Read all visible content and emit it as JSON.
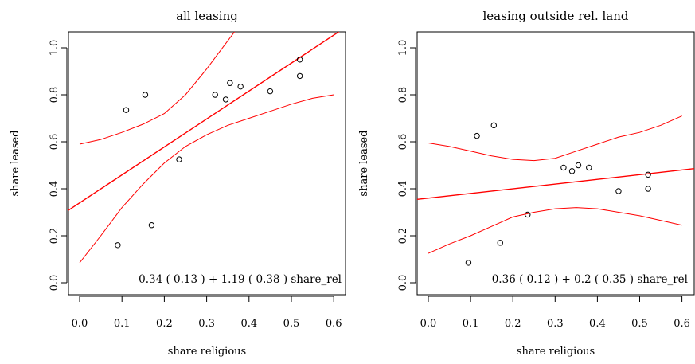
{
  "chart_data": [
    {
      "type": "scatter",
      "title": "all leasing",
      "xlabel": "share religious",
      "ylabel": "share leased",
      "xlim": [
        0.0,
        0.6
      ],
      "ylim": [
        0.0,
        1.0
      ],
      "xticks": [
        "0.0",
        "0.1",
        "0.2",
        "0.3",
        "0.4",
        "0.5",
        "0.6"
      ],
      "yticks": [
        "0.0",
        "0.2",
        "0.4",
        "0.6",
        "0.8",
        "1.0"
      ],
      "points": [
        {
          "x": 0.09,
          "y": 0.16
        },
        {
          "x": 0.11,
          "y": 0.735
        },
        {
          "x": 0.155,
          "y": 0.8
        },
        {
          "x": 0.17,
          "y": 0.245
        },
        {
          "x": 0.235,
          "y": 0.525
        },
        {
          "x": 0.32,
          "y": 0.8
        },
        {
          "x": 0.345,
          "y": 0.78
        },
        {
          "x": 0.355,
          "y": 0.85
        },
        {
          "x": 0.38,
          "y": 0.835
        },
        {
          "x": 0.45,
          "y": 0.815
        },
        {
          "x": 0.52,
          "y": 0.95
        },
        {
          "x": 0.52,
          "y": 0.88
        }
      ],
      "fit": {
        "intercept": 0.34,
        "slope": 1.19
      },
      "band_upper": [
        [
          0.0,
          0.59
        ],
        [
          0.05,
          0.61
        ],
        [
          0.1,
          0.64
        ],
        [
          0.15,
          0.675
        ],
        [
          0.2,
          0.72
        ],
        [
          0.25,
          0.8
        ],
        [
          0.3,
          0.91
        ],
        [
          0.35,
          1.03
        ],
        [
          0.4,
          1.15
        ]
      ],
      "band_lower": [
        [
          0.0,
          0.085
        ],
        [
          0.05,
          0.2
        ],
        [
          0.1,
          0.32
        ],
        [
          0.15,
          0.42
        ],
        [
          0.2,
          0.51
        ],
        [
          0.25,
          0.58
        ],
        [
          0.3,
          0.63
        ],
        [
          0.35,
          0.67
        ],
        [
          0.4,
          0.7
        ],
        [
          0.45,
          0.73
        ],
        [
          0.5,
          0.76
        ],
        [
          0.55,
          0.785
        ],
        [
          0.6,
          0.8
        ]
      ],
      "annotation": "0.34 ( 0.13 ) + 1.19 ( 0.38 ) share_rel",
      "color": "#ff0000"
    },
    {
      "type": "scatter",
      "title": "leasing outside rel. land",
      "xlabel": "share religious",
      "ylabel": "share leased",
      "xlim": [
        0.0,
        0.6
      ],
      "ylim": [
        0.0,
        1.0
      ],
      "xticks": [
        "0.0",
        "0.1",
        "0.2",
        "0.3",
        "0.4",
        "0.5",
        "0.6"
      ],
      "yticks": [
        "0.0",
        "0.2",
        "0.4",
        "0.6",
        "0.8",
        "1.0"
      ],
      "points": [
        {
          "x": 0.095,
          "y": 0.085
        },
        {
          "x": 0.115,
          "y": 0.625
        },
        {
          "x": 0.155,
          "y": 0.67
        },
        {
          "x": 0.17,
          "y": 0.17
        },
        {
          "x": 0.235,
          "y": 0.29
        },
        {
          "x": 0.32,
          "y": 0.49
        },
        {
          "x": 0.34,
          "y": 0.475
        },
        {
          "x": 0.355,
          "y": 0.5
        },
        {
          "x": 0.38,
          "y": 0.49
        },
        {
          "x": 0.45,
          "y": 0.39
        },
        {
          "x": 0.52,
          "y": 0.46
        },
        {
          "x": 0.52,
          "y": 0.4
        }
      ],
      "fit": {
        "intercept": 0.36,
        "slope": 0.2
      },
      "band_upper": [
        [
          0.0,
          0.595
        ],
        [
          0.05,
          0.58
        ],
        [
          0.1,
          0.56
        ],
        [
          0.15,
          0.54
        ],
        [
          0.2,
          0.525
        ],
        [
          0.25,
          0.52
        ],
        [
          0.3,
          0.53
        ],
        [
          0.35,
          0.56
        ],
        [
          0.4,
          0.59
        ],
        [
          0.45,
          0.62
        ],
        [
          0.5,
          0.64
        ],
        [
          0.55,
          0.67
        ],
        [
          0.6,
          0.71
        ]
      ],
      "band_lower": [
        [
          0.0,
          0.125
        ],
        [
          0.05,
          0.165
        ],
        [
          0.1,
          0.2
        ],
        [
          0.15,
          0.24
        ],
        [
          0.2,
          0.28
        ],
        [
          0.25,
          0.3
        ],
        [
          0.3,
          0.315
        ],
        [
          0.35,
          0.32
        ],
        [
          0.4,
          0.315
        ],
        [
          0.45,
          0.3
        ],
        [
          0.5,
          0.285
        ],
        [
          0.55,
          0.265
        ],
        [
          0.6,
          0.245
        ]
      ],
      "annotation": "0.36 ( 0.12 ) + 0.2 ( 0.35 ) share_rel",
      "color": "#ff0000"
    }
  ]
}
